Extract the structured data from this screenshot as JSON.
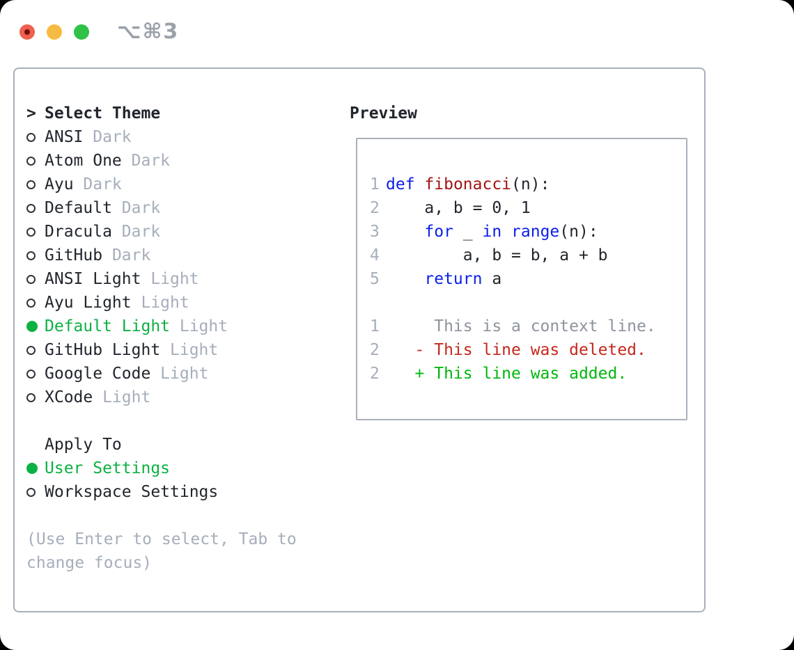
{
  "window": {
    "title_shortcut": "⌥⌘3"
  },
  "theme_selector": {
    "heading_marker": ">",
    "heading": "Select Theme",
    "items": [
      {
        "name": "ANSI",
        "variant": "Dark",
        "selected": false
      },
      {
        "name": "Atom One",
        "variant": "Dark",
        "selected": false
      },
      {
        "name": "Ayu",
        "variant": "Dark",
        "selected": false
      },
      {
        "name": "Default",
        "variant": "Dark",
        "selected": false
      },
      {
        "name": "Dracula",
        "variant": "Dark",
        "selected": false
      },
      {
        "name": "GitHub",
        "variant": "Dark",
        "selected": false
      },
      {
        "name": "ANSI Light",
        "variant": "Light",
        "selected": false
      },
      {
        "name": "Ayu Light",
        "variant": "Light",
        "selected": false
      },
      {
        "name": "Default Light",
        "variant": "Light",
        "selected": true
      },
      {
        "name": "GitHub Light",
        "variant": "Light",
        "selected": false
      },
      {
        "name": "Google Code",
        "variant": "Light",
        "selected": false
      },
      {
        "name": "XCode",
        "variant": "Light",
        "selected": false
      }
    ]
  },
  "apply_to": {
    "heading": "Apply To",
    "options": [
      {
        "label": "User Settings",
        "selected": true
      },
      {
        "label": "Workspace Settings",
        "selected": false
      }
    ]
  },
  "hint": "(Use Enter to select, Tab to change focus)",
  "preview": {
    "heading": "Preview",
    "lines": [
      {
        "num": "1",
        "tokens": [
          {
            "t": "def",
            "c": "kw"
          },
          {
            "t": " "
          },
          {
            "t": "fibonacci",
            "c": "fn"
          },
          {
            "t": "(n):"
          }
        ]
      },
      {
        "num": "2",
        "tokens": [
          {
            "t": "    a, b = 0, 1"
          }
        ]
      },
      {
        "num": "3",
        "tokens": [
          {
            "t": "    "
          },
          {
            "t": "for",
            "c": "kw"
          },
          {
            "t": " _ "
          },
          {
            "t": "in",
            "c": "kw"
          },
          {
            "t": " "
          },
          {
            "t": "range",
            "c": "kw"
          },
          {
            "t": "(n):"
          }
        ]
      },
      {
        "num": "4",
        "tokens": [
          {
            "t": "        a, b = b, a + b"
          }
        ]
      },
      {
        "num": "5",
        "tokens": [
          {
            "t": "    "
          },
          {
            "t": "return",
            "c": "kw"
          },
          {
            "t": " a"
          }
        ]
      },
      {
        "num": "",
        "tokens": []
      },
      {
        "num": "1",
        "tokens": [
          {
            "t": "     This is a context line.",
            "c": "ctx"
          }
        ]
      },
      {
        "num": "2",
        "tokens": [
          {
            "t": "   - This line was deleted.",
            "c": "del"
          }
        ]
      },
      {
        "num": "2",
        "tokens": [
          {
            "t": "   + This line was added.",
            "c": "add"
          }
        ]
      }
    ]
  },
  "colors": {
    "accent-green": "#0cb143",
    "diff-add": "#00b70e",
    "diff-del": "#c5281c",
    "keyword-blue": "#0b1fe8",
    "function-red": "#a31414",
    "text-dark": "#21262d",
    "muted-gray": "#a6aebb",
    "context-gray": "#8d949d",
    "border-gray": "#a9b0ba",
    "title-gray": "#9aa1a8"
  }
}
